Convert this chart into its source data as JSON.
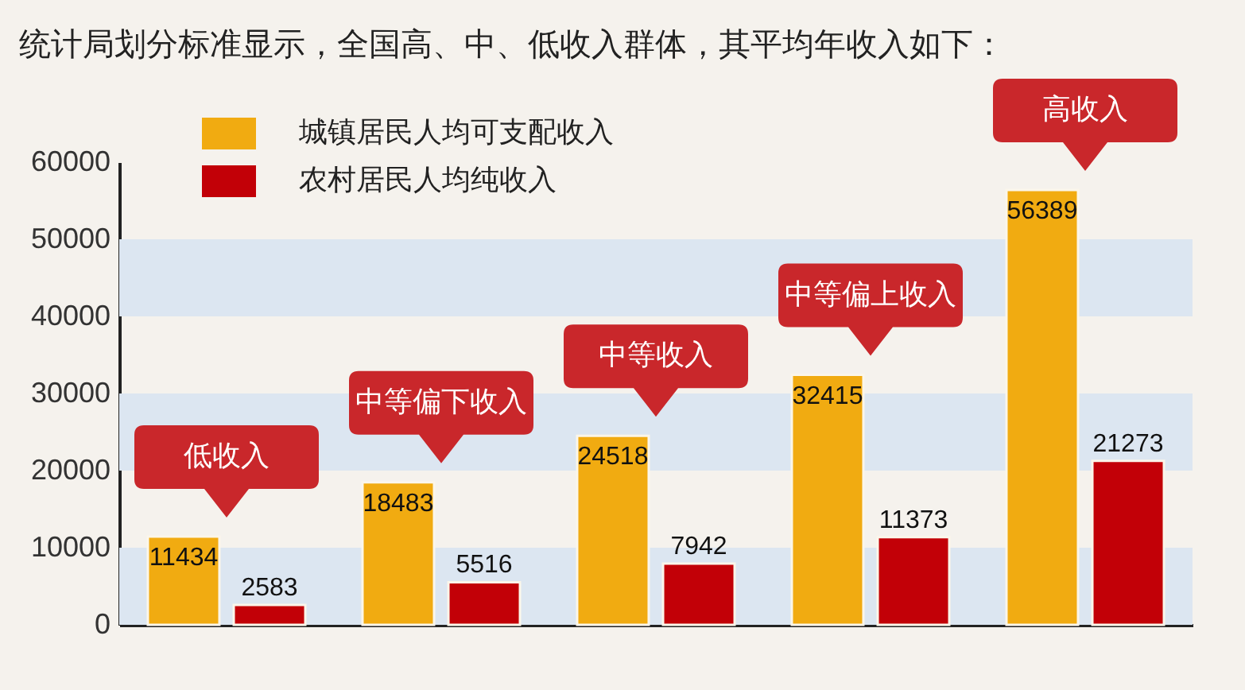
{
  "chart_data": {
    "type": "bar",
    "title": "统计局划分标准显示，全国高、中、低收入群体，其平均年收入如下：",
    "categories": [
      "低收入",
      "中等偏下收入",
      "中等收入",
      "中等偏上收入",
      "高收入"
    ],
    "series": [
      {
        "name": "城镇居民人均可支配收入",
        "color": "#f1ab11",
        "values": [
          11434,
          18483,
          24518,
          32415,
          56389
        ]
      },
      {
        "name": "农村居民人均纯收入",
        "color": "#c20007",
        "values": [
          2583,
          5516,
          7942,
          11373,
          21273
        ]
      }
    ],
    "ylim": [
      0,
      60000
    ],
    "yticks": [
      0,
      10000,
      20000,
      30000,
      40000,
      50000,
      60000
    ],
    "bands": [
      {
        "axis": "y",
        "from": 0,
        "to": 10000,
        "color": "#dce6f1"
      },
      {
        "axis": "y",
        "from": 20000,
        "to": 30000,
        "color": "#dce6f1"
      },
      {
        "axis": "y",
        "from": 40000,
        "to": 50000,
        "color": "#dce6f1"
      }
    ],
    "data_labels": true,
    "legend": "top left"
  }
}
